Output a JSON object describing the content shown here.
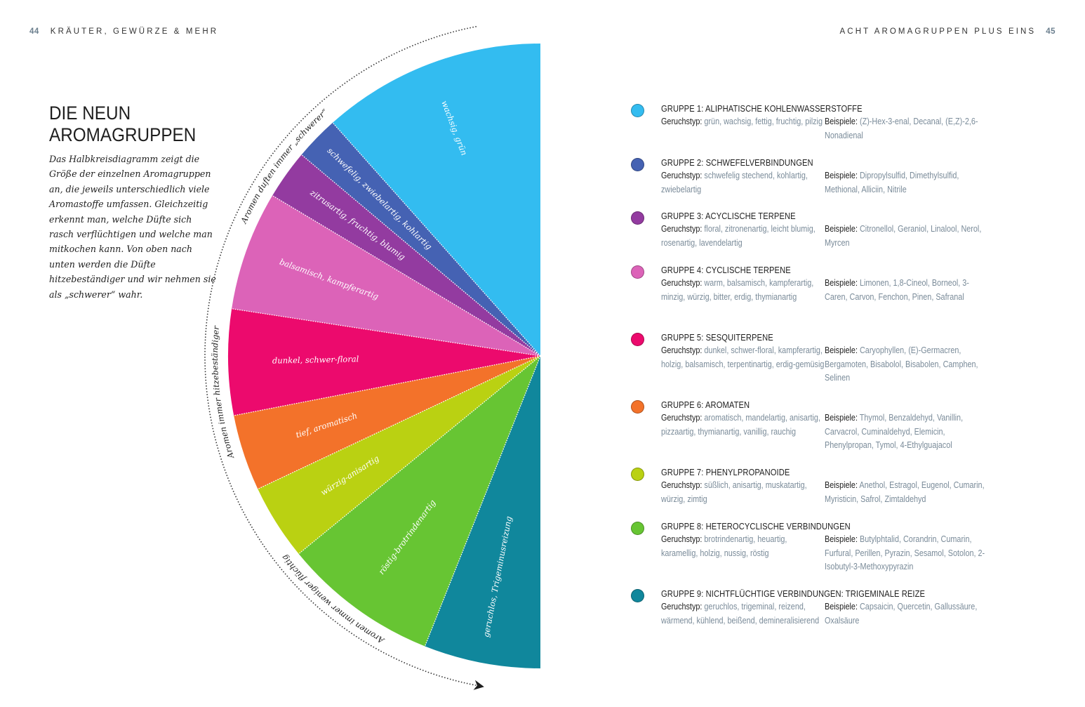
{
  "header": {
    "left_page_number": "44",
    "left_title": "KRÄUTER, GEWÜRZE & MEHR",
    "right_title": "ACHT AROMAGRUPPEN PLUS EINS",
    "right_page_number": "45"
  },
  "intro": {
    "title_line1": "DIE NEUN",
    "title_line2": "AROMAGRUPPEN",
    "text": "Das Halbkreisdiagramm zeigt die Größe der einzelnen Aromagruppen an, die jeweils unterschiedlich viele Aromastoffe umfassen. Gleichzeitig erkennt man, welche Düfte sich rasch verflüchtigen und welche man mitkochen kann. Von oben nach unten werden die Düfte hitzebeständiger und wir nehmen sie als „schwerer“ wahr."
  },
  "chart_data": {
    "type": "pie",
    "variant": "half-circle",
    "unit": "degrees of 180° half circle (relative size of aroma group)",
    "categories": [
      "Gruppe 1",
      "Gruppe 2",
      "Gruppe 3",
      "Gruppe 4",
      "Gruppe 5",
      "Gruppe 6",
      "Gruppe 7",
      "Gruppe 8",
      "Gruppe 9"
    ],
    "values": [
      41.7,
      8.2,
      9.2,
      22.2,
      19.7,
      14.2,
      14.1,
      29.0,
      21.7
    ],
    "slice_labels": [
      "wachsig, grün",
      "schwefelig, zwiebelartig, kohlartig",
      "zitrusartig, fruchtig, blumig",
      "balsamisch, kampferartig",
      "dunkel, schwer-floral",
      "tief, aromatisch",
      "würzig-anisartig",
      "röstig-brotrindenartig",
      "geruchlos, Trigeminusreizung"
    ],
    "colors": [
      "#33bcf0",
      "#4562b3",
      "#933ba0",
      "#dc63b8",
      "#ec0a6d",
      "#f3722a",
      "#bad112",
      "#67c533",
      "#10879c"
    ],
    "arc_annotations": [
      "Aromen duften immer „schwerer“",
      "Aromen immer hitzebeständiger",
      "Aromen immer weniger flüchtig"
    ],
    "arrow_direction": "top-to-bottom"
  },
  "legend": {
    "geruchstyp_label": "Geruchstyp:",
    "beispiele_label": "Beispiele:",
    "groups": [
      {
        "title": "GRUPPE 1: ALIPHATISCHE KOHLENWASSERSTOFFE",
        "color": "#33bcf0",
        "geruchstyp": "grün, wachsig, fettig, fruchtig, pilzig",
        "beispiele": "(Z)-Hex-3-enal, Decanal, (E,Z)-2,6-Nonadienal"
      },
      {
        "title": "GRUPPE 2: SCHWEFELVERBINDUNGEN",
        "color": "#4562b3",
        "geruchstyp": "schwefelig stechend, kohlartig, zwiebelartig",
        "beispiele": "Dipropylsulfid, Dimethylsulfid, Methional, Alliciin, Nitrile"
      },
      {
        "title": "GRUPPE 3: ACYCLISCHE TERPENE",
        "color": "#933ba0",
        "geruchstyp": "floral, zitronenartig, leicht blumig, rosenartig, lavendelartig",
        "beispiele": "Citronellol, Geraniol, Linalool, Nerol, Myrcen"
      },
      {
        "title": "GRUPPE 4: CYCLISCHE TERPENE",
        "color": "#dc63b8",
        "geruchstyp": "warm, balsamisch, kampferartig, minzig, würzig, bitter, erdig, thymianartig",
        "beispiele": "Limonen, 1,8-Cineol, Borneol, 3-Caren, Carvon, Fenchon, Pinen, Safranal"
      },
      {
        "title": "GRUPPE 5: SESQUITERPENE",
        "color": "#ec0a6d",
        "geruchstyp": "dunkel, schwer-floral, kampferartig, holzig, balsamisch, terpentinartig, erdig-gemüsig",
        "beispiele": "Caryophyllen, (E)-Germacren, Bergamoten, Bisabolol, Bisabolen, Camphen, Selinen"
      },
      {
        "title": "GRUPPE 6: AROMATEN",
        "color": "#f3722a",
        "geruchstyp": "aromatisch, mandelartig, anisartig, pizzaartig, thymianartig, vanillig, rauchig",
        "beispiele": "Thymol, Benzaldehyd, Vanillin, Carvacrol, Cuminaldehyd, Elemicin, Phenylpropan, Tymol, 4-Ethylguajacol"
      },
      {
        "title": "GRUPPE 7: PHENYLPROPANOIDE",
        "color": "#bad112",
        "geruchstyp": "süßlich, anisartig, muskatartig, würzig, zimtig",
        "beispiele": "Anethol, Estragol, Eugenol, Cumarin, Myristicin, Safrol, Zimtaldehyd"
      },
      {
        "title": "GRUPPE 8: HETEROCYCLISCHE VERBINDUNGEN",
        "color": "#67c533",
        "geruchstyp": "brotrindenartig, heuartig, karamellig, holzig, nussig, röstig",
        "beispiele": "Butylphtalid, Corandrin, Cumarin, Furfural, Perillen, Pyrazin, Sesamol, Sotolon, 2-Isobutyl-3-Methoxypyrazin"
      },
      {
        "title": "GRUPPE 9: NICHTFLÜCHTIGE VERBINDUNGEN: TRIGEMINALE REIZE",
        "color": "#10879c",
        "geruchstyp": "geruchlos, trigeminal, reizend, wärmend, kühlend, beißend, demineralisierend",
        "beispiele": "Capsaicin, Quercetin, Gallussäure, Oxalsäure"
      }
    ]
  }
}
